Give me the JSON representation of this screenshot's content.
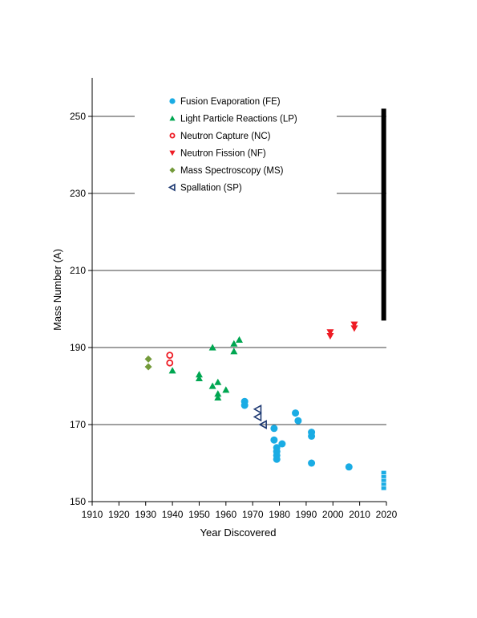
{
  "chart_data": {
    "type": "scatter",
    "title": "",
    "xlabel": "Year Discovered",
    "ylabel": "Mass Number (A)",
    "xlim": [
      1910,
      2020
    ],
    "ylim": [
      150,
      260
    ],
    "xticks": [
      1910,
      1920,
      1930,
      1940,
      1950,
      1960,
      1970,
      1980,
      1990,
      2000,
      2010,
      2020
    ],
    "yticks": [
      150,
      170,
      190,
      210,
      230,
      250
    ],
    "grid": "horizontal at each y tick",
    "legend_position": "top-center, inside plot",
    "series": [
      {
        "name": "Fusion Evaporation (FE)",
        "marker": "filled-circle",
        "color": "#1aace4",
        "points": [
          [
            1967,
            176
          ],
          [
            1967,
            175
          ],
          [
            1978,
            169
          ],
          [
            1978,
            166
          ],
          [
            1979,
            164
          ],
          [
            1979,
            163
          ],
          [
            1979,
            162
          ],
          [
            1979,
            161
          ],
          [
            1981,
            165
          ],
          [
            1986,
            173
          ],
          [
            1987,
            171
          ],
          [
            1992,
            168
          ],
          [
            1992,
            167
          ],
          [
            1992,
            160
          ],
          [
            2006,
            159
          ]
        ]
      },
      {
        "name": "Light Particle Reactions (LP)",
        "marker": "filled-triangle-up",
        "color": "#00a651",
        "points": [
          [
            1940,
            184
          ],
          [
            1950,
            183
          ],
          [
            1950,
            182
          ],
          [
            1955,
            190
          ],
          [
            1955,
            180
          ],
          [
            1957,
            181
          ],
          [
            1957,
            178
          ],
          [
            1957,
            177
          ],
          [
            1960,
            179
          ],
          [
            1963,
            191
          ],
          [
            1963,
            189
          ],
          [
            1965,
            192
          ]
        ]
      },
      {
        "name": "Neutron Capture (NC)",
        "marker": "open-circle",
        "color": "#ee1c25",
        "points": [
          [
            1939,
            188
          ],
          [
            1939,
            186
          ]
        ]
      },
      {
        "name": "Neutron Fission (NF)",
        "marker": "filled-triangle-down",
        "color": "#ee1c25",
        "points": [
          [
            1999,
            194
          ],
          [
            1999,
            193
          ],
          [
            2008,
            196
          ],
          [
            2008,
            195
          ]
        ]
      },
      {
        "name": "Mass Spectroscopy (MS)",
        "marker": "filled-diamond",
        "color": "#739a3a",
        "points": [
          [
            1931,
            187
          ],
          [
            1931,
            185
          ]
        ]
      },
      {
        "name": "Spallation (SP)",
        "marker": "open-triangle-left",
        "color": "#1f3a73",
        "points": [
          [
            1972,
            174
          ],
          [
            1972,
            172
          ],
          [
            1974,
            170
          ]
        ]
      }
    ],
    "annotations": [
      {
        "kind": "range-bar",
        "x": 2019,
        "y_from": 153,
        "y_to": 158,
        "color": "#1aace4"
      },
      {
        "kind": "range-bar",
        "x": 2019,
        "y_from": 197,
        "y_to": 252,
        "color": "#000000"
      }
    ]
  }
}
